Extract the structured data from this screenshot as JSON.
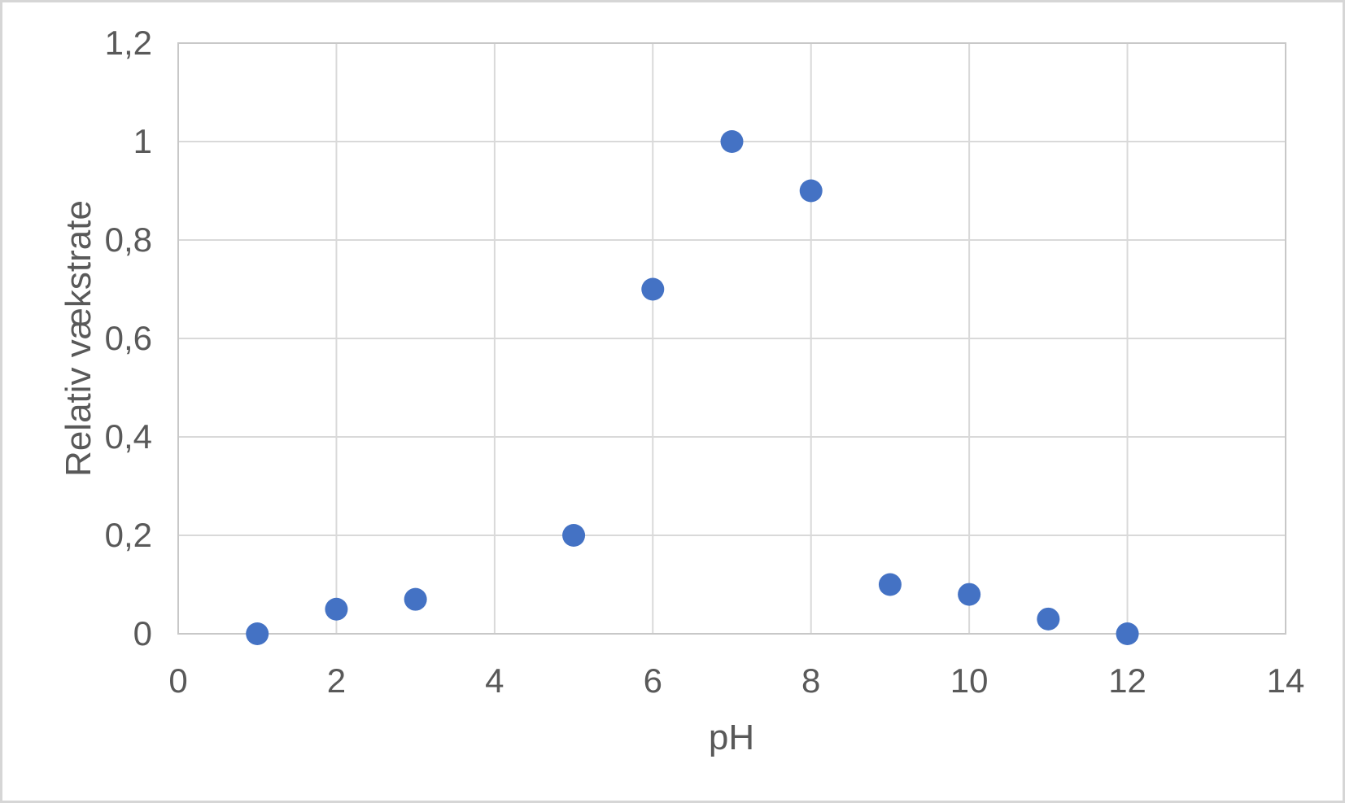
{
  "chart_data": {
    "type": "scatter",
    "title": "",
    "xlabel": "pH",
    "ylabel": "Relativ vækstrate",
    "series": [
      {
        "name": "Relativ vækstrate",
        "points": [
          {
            "x": 1,
            "y": 0
          },
          {
            "x": 2,
            "y": 0.05
          },
          {
            "x": 3,
            "y": 0.07
          },
          {
            "x": 5,
            "y": 0.2
          },
          {
            "x": 6,
            "y": 0.7
          },
          {
            "x": 7,
            "y": 1.0
          },
          {
            "x": 8,
            "y": 0.9
          },
          {
            "x": 9,
            "y": 0.1
          },
          {
            "x": 10,
            "y": 0.08
          },
          {
            "x": 11,
            "y": 0.03
          },
          {
            "x": 12,
            "y": 0
          }
        ]
      }
    ],
    "xlim": [
      0,
      14
    ],
    "ylim": [
      0,
      1.2
    ],
    "xticks": {
      "values": [
        0,
        2,
        4,
        6,
        8,
        10,
        12,
        14
      ],
      "labels": [
        "0",
        "2",
        "4",
        "6",
        "8",
        "10",
        "12",
        "14"
      ]
    },
    "yticks": {
      "values": [
        0,
        0.2,
        0.4,
        0.6,
        0.8,
        1,
        1.2
      ],
      "labels": [
        "0",
        "0,2",
        "0,4",
        "0,6",
        "0,8",
        "1",
        "1,2"
      ]
    },
    "grid": true,
    "legend_position": "none",
    "number_format": "decimal-comma",
    "marker": {
      "shape": "circle",
      "radius_px": 14,
      "color": "#4472C4"
    },
    "colors": {
      "background": "#FFFFFF",
      "gridline": "#D9D9D9",
      "plot_border": "#C8C8C8",
      "axis_text": "#595959",
      "outer_border": "#D6D6D6"
    }
  }
}
